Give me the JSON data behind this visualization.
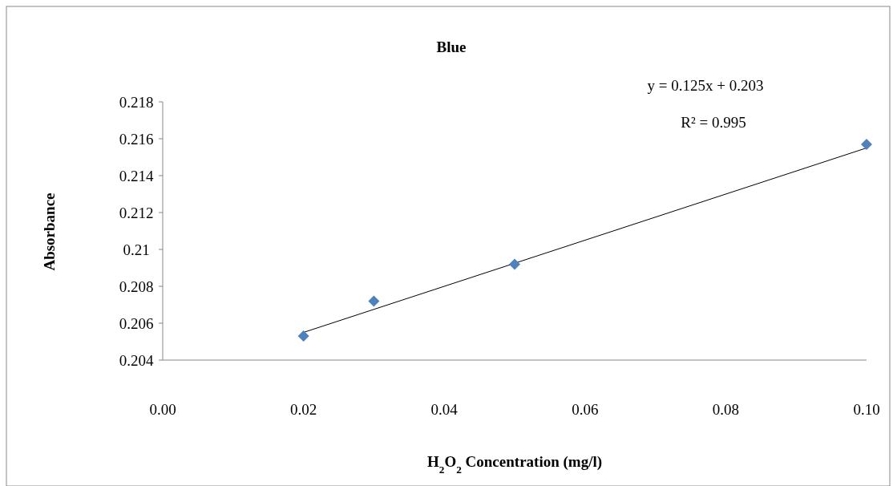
{
  "chart_data": {
    "type": "scatter",
    "title": "Blue",
    "xlabel": "H$_{2}$O$_{2}$ Concentration (mg/l)",
    "ylabel": "Absorbance",
    "annotations": [
      "y = 0.125x + 0.203",
      "R² = 0.995"
    ],
    "xlim": [
      0,
      0.1
    ],
    "xticks": [
      {
        "value": 0,
        "label": "0.00"
      },
      {
        "value": 0.02,
        "label": "0.02"
      },
      {
        "value": 0.04,
        "label": "0.04"
      },
      {
        "value": 0.06,
        "label": "0.06"
      },
      {
        "value": 0.08,
        "label": "0.08"
      },
      {
        "value": 0.1,
        "label": "0.10"
      }
    ],
    "ylim": [
      0.204,
      0.218
    ],
    "yticks": [
      0.204,
      0.206,
      0.208,
      0.21,
      0.212,
      0.214,
      0.216,
      0.218
    ],
    "series": [
      {
        "color": "#4f81bd",
        "marker": "diamond",
        "x": [
          0.02,
          0.03,
          0.05,
          0.1
        ],
        "values": [
          0.2053,
          0.2072,
          0.2092,
          0.2157
        ]
      },
      {
        "type": "line",
        "color": "#000000",
        "marker": "none",
        "x": [
          0.02,
          0.1
        ],
        "values": [
          0.2055,
          0.2155
        ]
      }
    ]
  }
}
